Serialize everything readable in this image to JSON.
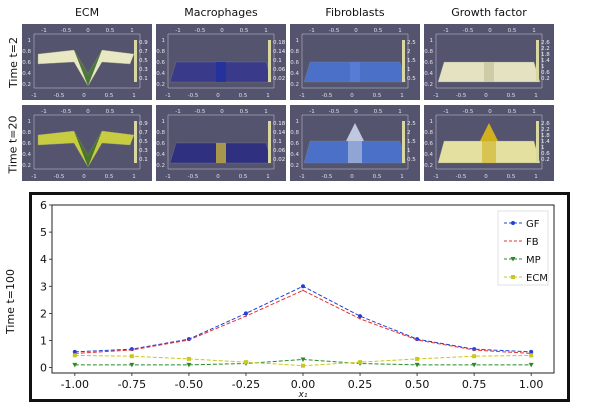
{
  "column_headers": [
    "ECM",
    "Macrophages",
    "Fibroblasts",
    "Growth factor"
  ],
  "row_labels": [
    "Time t=2",
    "Time t=20",
    "Time t=100"
  ],
  "panels": [
    {
      "row": 0,
      "col": 0,
      "colorbar_ticks": [
        "0.9",
        "0.7",
        "0.5",
        "0.3",
        "0.1"
      ],
      "surface": "well",
      "surface_color": "#e8e8c4"
    },
    {
      "row": 0,
      "col": 1,
      "colorbar_ticks": [
        "0.18",
        "0.14",
        "0.1",
        "0.06",
        "0.02"
      ],
      "surface": "flat",
      "surface_color": "#3a3a8a",
      "stripe_color": "#2030a0"
    },
    {
      "row": 0,
      "col": 2,
      "colorbar_ticks": [
        "2.5",
        "2",
        "1.5",
        "1",
        "0.5"
      ],
      "surface": "flat",
      "surface_color": "#4a70c8",
      "stripe_color": "#5a80d8"
    },
    {
      "row": 0,
      "col": 3,
      "colorbar_ticks": [
        "2.6",
        "2.2",
        "1.8",
        "1.4",
        "1",
        "0.6",
        "0.2"
      ],
      "surface": "flat",
      "surface_color": "#e4e2c0",
      "stripe_color": "#c8c6a0"
    },
    {
      "row": 1,
      "col": 0,
      "colorbar_ticks": [
        "0.9",
        "0.7",
        "0.5",
        "0.3",
        "0.1"
      ],
      "surface": "well",
      "surface_color": "#c8cc40"
    },
    {
      "row": 1,
      "col": 1,
      "colorbar_ticks": [
        "0.18",
        "0.14",
        "0.1",
        "0.06",
        "0.02"
      ],
      "surface": "flat",
      "surface_color": "#303080",
      "stripe_color": "#c8b040"
    },
    {
      "row": 1,
      "col": 2,
      "colorbar_ticks": [
        "2.5",
        "2",
        "1.5",
        "1",
        "0.5"
      ],
      "surface": "peak",
      "surface_color": "#4a70c8",
      "stripe_color": "#c0c8e0"
    },
    {
      "row": 1,
      "col": 3,
      "colorbar_ticks": [
        "2.6",
        "2.2",
        "1.8",
        "1.4",
        "1",
        "0.6",
        "0.2"
      ],
      "surface": "peak",
      "surface_color": "#e4e0a0",
      "stripe_color": "#d0b020"
    }
  ],
  "panel_axis_labels": {
    "z_ticks": [
      "1",
      "0.8",
      "0.6",
      "0.4",
      "0.2"
    ],
    "x_ticks": [
      "-1",
      "-0.5",
      "0",
      "0.5",
      "1"
    ],
    "top_ticks": [
      "-1",
      "-0.5",
      "0",
      "0.5",
      "1"
    ]
  },
  "chart_data": {
    "type": "line",
    "x": [
      -1.0,
      -0.75,
      -0.5,
      -0.25,
      0.0,
      0.25,
      0.5,
      0.75,
      1.0
    ],
    "xlim": [
      -1.1,
      1.1
    ],
    "ylim": [
      -0.2,
      6
    ],
    "xticks": [
      "-1.00",
      "-0.75",
      "-0.50",
      "-0.25",
      "0.00",
      "0.25",
      "0.50",
      "0.75",
      "1.00"
    ],
    "yticks": [
      "0",
      "1",
      "2",
      "3",
      "4",
      "5",
      "6"
    ],
    "xlabel": "x₁",
    "ylabel": "",
    "legend_position": "top-right",
    "series": [
      {
        "name": "GF",
        "color": "#1f3fd8",
        "marker": "circle",
        "values": [
          0.58,
          0.68,
          1.05,
          2.0,
          3.0,
          1.9,
          1.05,
          0.68,
          0.58
        ]
      },
      {
        "name": "FB",
        "color": "#e83030",
        "marker": "none",
        "values": [
          0.52,
          0.65,
          1.02,
          1.9,
          2.85,
          1.8,
          1.02,
          0.65,
          0.52
        ]
      },
      {
        "name": "MP",
        "color": "#2a8a2a",
        "marker": "triangle",
        "values": [
          0.1,
          0.1,
          0.1,
          0.15,
          0.3,
          0.15,
          0.1,
          0.1,
          0.1
        ]
      },
      {
        "name": "ECM",
        "color": "#c8c820",
        "marker": "square",
        "values": [
          0.45,
          0.42,
          0.32,
          0.2,
          0.07,
          0.2,
          0.32,
          0.42,
          0.45
        ]
      }
    ]
  }
}
